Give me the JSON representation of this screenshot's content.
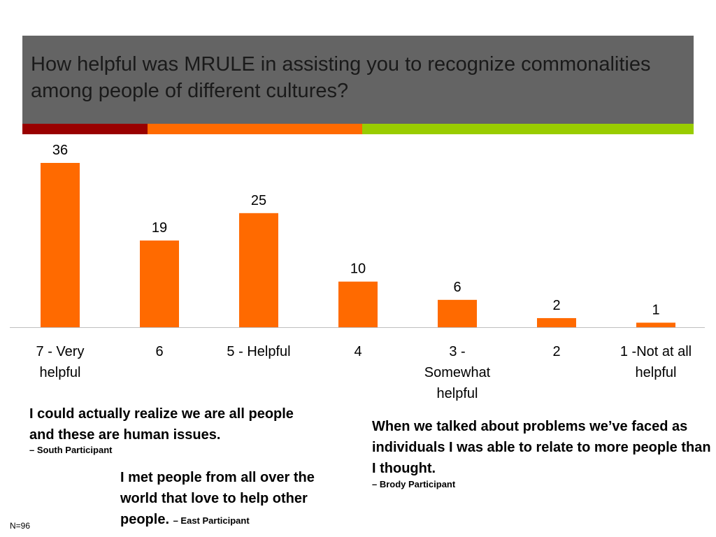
{
  "slide": {
    "title": "How helpful was MRULE in assisting you to recognize commonalities among people of different cultures?",
    "n_label": "N=96"
  },
  "colors": {
    "title_band": "#646464",
    "stripe_red": "#990000",
    "stripe_orange": "#ff6a00",
    "stripe_green": "#99cc00",
    "bar": "#ff6a00",
    "axis": "#bfbfbf"
  },
  "chart_data": {
    "type": "bar",
    "categories": [
      "7 - Very helpful",
      "6",
      "5 - Helpful",
      "4",
      "3 - Somewhat helpful",
      "2",
      "1 -Not at all helpful"
    ],
    "values": [
      36,
      19,
      25,
      10,
      6,
      2,
      1
    ],
    "title": "",
    "xlabel": "",
    "ylabel": "",
    "ylim": [
      0,
      36
    ],
    "grid": false,
    "legend": "none",
    "data_labels": true
  },
  "category_labels": {
    "c0": [
      "7 - Very",
      "helpful"
    ],
    "c1": [
      "6"
    ],
    "c2": [
      "5 - Helpful"
    ],
    "c3": [
      "4"
    ],
    "c4": [
      "3 -",
      "Somewhat",
      "helpful"
    ],
    "c5": [
      "2"
    ],
    "c6": [
      "1 -Not at all",
      "helpful"
    ]
  },
  "quotes": [
    {
      "text": "I could actually realize we are all people and these are human issues.",
      "attribution": "– South Participant"
    },
    {
      "text": "When we talked about problems we’ve faced as individuals I was able to relate to more people than I thought.",
      "attribution": "– Brody Participant"
    },
    {
      "text": "I met people from all over the world that love to help other people.",
      "attribution": "– East Participant"
    }
  ]
}
